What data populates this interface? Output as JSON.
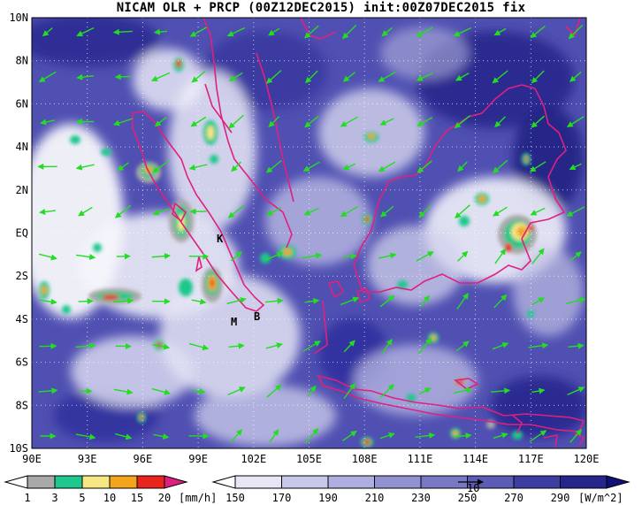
{
  "title": "NICAM OLR + PRCP (00Z12DEC2015) init:00Z07DEC2015 fix",
  "map": {
    "lon_ticks": [
      "90E",
      "93E",
      "96E",
      "99E",
      "102E",
      "105E",
      "108E",
      "111E",
      "114E",
      "117E",
      "120E"
    ],
    "lat_ticks": [
      "10N",
      "8N",
      "6N",
      "4N",
      "2N",
      "EQ",
      "2S",
      "4S",
      "6S",
      "8S",
      "10S"
    ],
    "station_labels": [
      "K",
      "M",
      "B"
    ],
    "coastline_color": "#e0207f",
    "wind_arrow_color": "#22dd22",
    "gridline_color": "#ffffff"
  },
  "precip_colorbar": {
    "values": [
      "1",
      "3",
      "5",
      "10",
      "15",
      "20"
    ],
    "unit": "[mm/h]",
    "colors": [
      "#a9a9a9",
      "#1ec88c",
      "#f6e784",
      "#f2a51c",
      "#e8241c",
      "#e0207f"
    ]
  },
  "olr_colorbar": {
    "values": [
      "150",
      "170",
      "190",
      "210",
      "230",
      "250",
      "270",
      "290"
    ],
    "unit": "[W/m^2]",
    "reference_arrow_label": "10",
    "colors": [
      "#ffffff",
      "#e6e6f4",
      "#c8c8ea",
      "#aeaee0",
      "#9292d2",
      "#7878c4",
      "#5c5cb6",
      "#3d3da2",
      "#26268a",
      "#101078"
    ]
  }
}
